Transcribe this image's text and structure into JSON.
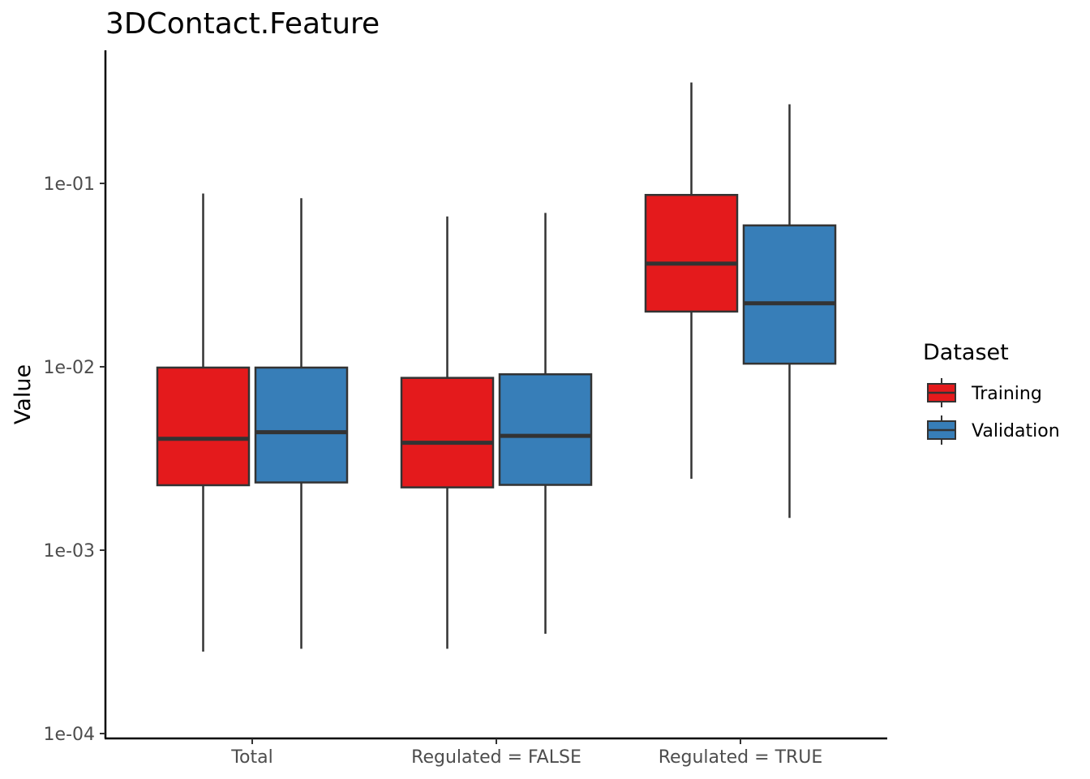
{
  "chart_data": {
    "type": "boxplot",
    "title": "3DContact.Feature",
    "xlabel": "",
    "ylabel": "Value",
    "y_scale": "log10",
    "ylim": [
      0.0001,
      0.5
    ],
    "y_ticks": [
      {
        "value": 0.0001,
        "label": "1e-04"
      },
      {
        "value": 0.001,
        "label": "1e-03"
      },
      {
        "value": 0.01,
        "label": "1e-02"
      },
      {
        "value": 0.1,
        "label": "1e-01"
      }
    ],
    "categories": [
      "Total",
      "Regulated = FALSE",
      "Regulated = TRUE"
    ],
    "grid": false,
    "legend": {
      "title": "Dataset",
      "position": "right"
    },
    "series": [
      {
        "name": "Training",
        "color": "#e41a1c",
        "boxes": [
          {
            "min": 0.00028,
            "q1": 0.00226,
            "median": 0.00405,
            "q3": 0.0099,
            "max": 0.088
          },
          {
            "min": 0.00029,
            "q1": 0.0022,
            "median": 0.00385,
            "q3": 0.0087,
            "max": 0.066
          },
          {
            "min": 0.00245,
            "q1": 0.02,
            "median": 0.0365,
            "q3": 0.0865,
            "max": 0.355
          }
        ]
      },
      {
        "name": "Validation",
        "color": "#377eb8",
        "boxes": [
          {
            "min": 0.00029,
            "q1": 0.00234,
            "median": 0.0044,
            "q3": 0.0099,
            "max": 0.083
          },
          {
            "min": 0.00035,
            "q1": 0.00227,
            "median": 0.0042,
            "q3": 0.0091,
            "max": 0.069
          },
          {
            "min": 0.0015,
            "q1": 0.0104,
            "median": 0.0222,
            "q3": 0.059,
            "max": 0.27
          }
        ]
      }
    ],
    "outline_color": "#333333"
  }
}
